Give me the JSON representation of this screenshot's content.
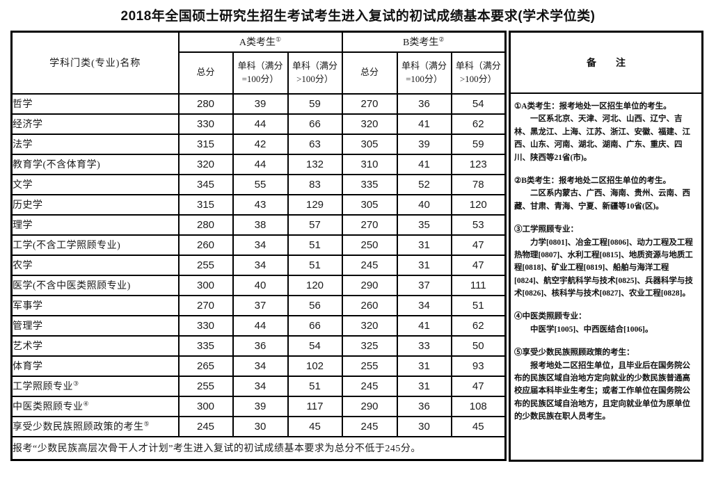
{
  "title": "2018年全国硕士研究生招生考试考生进入复试的初试成绩基本要求(学术学位类)",
  "table": {
    "header": {
      "subject": "学科门类(专业)名称",
      "group_a": {
        "label": "A类考生",
        "sup": "①"
      },
      "group_b": {
        "label": "B类考生",
        "sup": "②"
      },
      "total_a": "总分",
      "total_b": "总分",
      "single_eq": [
        "单科（满分",
        "=100分）"
      ],
      "single_gt": [
        "单科（满分",
        ">100分）"
      ]
    },
    "rows": [
      {
        "name": "哲学",
        "sup": "",
        "scores": [
          "280",
          "39",
          "59",
          "270",
          "36",
          "54"
        ]
      },
      {
        "name": "经济学",
        "sup": "",
        "scores": [
          "330",
          "44",
          "66",
          "320",
          "41",
          "62"
        ]
      },
      {
        "name": "法学",
        "sup": "",
        "scores": [
          "315",
          "42",
          "63",
          "305",
          "39",
          "59"
        ]
      },
      {
        "name": "教育学(不含体育学)",
        "sup": "",
        "scores": [
          "320",
          "44",
          "132",
          "310",
          "41",
          "123"
        ]
      },
      {
        "name": "文学",
        "sup": "",
        "scores": [
          "345",
          "55",
          "83",
          "335",
          "52",
          "78"
        ]
      },
      {
        "name": "历史学",
        "sup": "",
        "scores": [
          "315",
          "43",
          "129",
          "305",
          "40",
          "120"
        ]
      },
      {
        "name": "理学",
        "sup": "",
        "scores": [
          "280",
          "38",
          "57",
          "270",
          "35",
          "53"
        ]
      },
      {
        "name": "工学(不含工学照顾专业)",
        "sup": "",
        "scores": [
          "260",
          "34",
          "51",
          "250",
          "31",
          "47"
        ]
      },
      {
        "name": "农学",
        "sup": "",
        "scores": [
          "255",
          "34",
          "51",
          "245",
          "31",
          "47"
        ]
      },
      {
        "name": "医学(不含中医类照顾专业)",
        "sup": "",
        "scores": [
          "300",
          "40",
          "120",
          "290",
          "37",
          "111"
        ]
      },
      {
        "name": "军事学",
        "sup": "",
        "scores": [
          "270",
          "37",
          "56",
          "260",
          "34",
          "51"
        ]
      },
      {
        "name": "管理学",
        "sup": "",
        "scores": [
          "330",
          "44",
          "66",
          "320",
          "41",
          "62"
        ]
      },
      {
        "name": "艺术学",
        "sup": "",
        "scores": [
          "335",
          "36",
          "54",
          "325",
          "33",
          "50"
        ]
      },
      {
        "name": "体育学",
        "sup": "",
        "scores": [
          "265",
          "34",
          "102",
          "255",
          "31",
          "93"
        ]
      },
      {
        "name": "工学照顾专业",
        "sup": "③",
        "scores": [
          "255",
          "34",
          "51",
          "245",
          "31",
          "47"
        ]
      },
      {
        "name": "中医类照顾专业",
        "sup": "④",
        "scores": [
          "300",
          "39",
          "117",
          "290",
          "36",
          "108"
        ]
      },
      {
        "name": "享受少数民族照顾政策的考生",
        "sup": "⑤",
        "scores": [
          "245",
          "30",
          "45",
          "245",
          "30",
          "45"
        ]
      }
    ],
    "footnote": "报考“少数民族高层次骨干人才计划”考生进入复试的初试成绩基本要求为总分不低于245分。"
  },
  "remarks": {
    "header_label": "备　　注",
    "notes": [
      {
        "head": "①A类考生：报考地处一区招生单位的考生。",
        "body": "一区系北京、天津、河北、山西、辽宁、吉林、黑龙江、上海、江苏、浙江、安徽、福建、江西、山东、河南、湖北、湖南、广东、重庆、四川、陕西等21省(市)。"
      },
      {
        "head": "②B类考生：报考地处二区招生单位的考生。",
        "body": "二区系内蒙古、广西、海南、贵州、云南、西藏、甘肃、青海、宁夏、新疆等10省(区)。"
      },
      {
        "head": "③工学照顾专业：",
        "body": "力学[0801]、冶金工程[0806]、动力工程及工程热物理[0807]、水利工程[0815]、地质资源与地质工程[0818]、矿业工程[0819]、船舶与海洋工程[0824]、航空宇航科学与技术[0825]、兵器科学与技术[0826]、核科学与技术[0827]、农业工程[0828]。"
      },
      {
        "head": "④中医类照顾专业：",
        "body": "中医学[1005]、中西医结合[1006]。"
      },
      {
        "head": "⑤享受少数民族照顾政策的考生：",
        "body": "报考地处二区招生单位，且毕业后在国务院公布的民族区域自治地方定向就业的少数民族普通高校应届本科毕业生考生；或者工作单位在国务院公布的民族区域自治地方，且定向就业单位为原单位的少数民族在职人员考生。"
      }
    ]
  },
  "colors": {
    "border": "#000000",
    "text": "#111111",
    "background": "#ffffff"
  }
}
